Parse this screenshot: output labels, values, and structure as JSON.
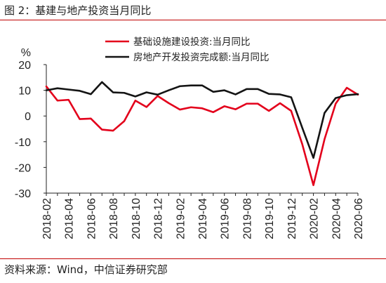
{
  "figure": {
    "title": "图 2：基建与地产投资当月同比",
    "source": "资料来源：Wind，中信证券研究部"
  },
  "chart_data": {
    "type": "line",
    "ylabel": "%",
    "ylim": [
      -30,
      20
    ],
    "yticks": [
      20,
      10,
      0,
      -10,
      -20,
      -30
    ],
    "xticks": [
      "2018-02",
      "2018-04",
      "2018-06",
      "2018-08",
      "2018-10",
      "2018-12",
      "2019-02",
      "2019-04",
      "2019-06",
      "2019-08",
      "2019-10",
      "2019-12",
      "2020-02",
      "2020-04",
      "2020-06"
    ],
    "x": [
      "2018-02",
      "2018-03",
      "2018-04",
      "2018-05",
      "2018-06",
      "2018-07",
      "2018-08",
      "2018-09",
      "2018-10",
      "2018-11",
      "2018-12",
      "2019-01",
      "2019-02",
      "2019-03",
      "2019-04",
      "2019-05",
      "2019-06",
      "2019-07",
      "2019-08",
      "2019-09",
      "2019-10",
      "2019-11",
      "2019-12",
      "2020-01",
      "2020-02",
      "2020-03",
      "2020-04",
      "2020-05",
      "2020-06"
    ],
    "legend_position": "top-right",
    "grid": false,
    "series": [
      {
        "name": "基础设施建设投资:当月同比",
        "color": "#e3001b",
        "values": [
          11.5,
          6.0,
          6.3,
          -1.2,
          -1.0,
          -5.3,
          -5.7,
          -2.0,
          6.0,
          3.5,
          7.8,
          5.0,
          2.5,
          3.4,
          3.0,
          1.5,
          3.8,
          2.6,
          4.8,
          4.8,
          2.0,
          5.0,
          2.0,
          -11.0,
          -26.9,
          -9.0,
          4.8,
          11.0,
          8.3
        ]
      },
      {
        "name": "房地产开发投资完成额:当月同比",
        "color": "#141414",
        "values": [
          10.0,
          10.8,
          10.3,
          9.8,
          8.5,
          13.2,
          9.2,
          9.0,
          7.6,
          9.2,
          8.3,
          10.0,
          11.6,
          11.9,
          11.9,
          9.4,
          10.0,
          8.4,
          10.5,
          10.5,
          8.6,
          8.4,
          7.3,
          -4.6,
          -16.3,
          1.2,
          7.0,
          8.1,
          8.5
        ]
      }
    ]
  }
}
